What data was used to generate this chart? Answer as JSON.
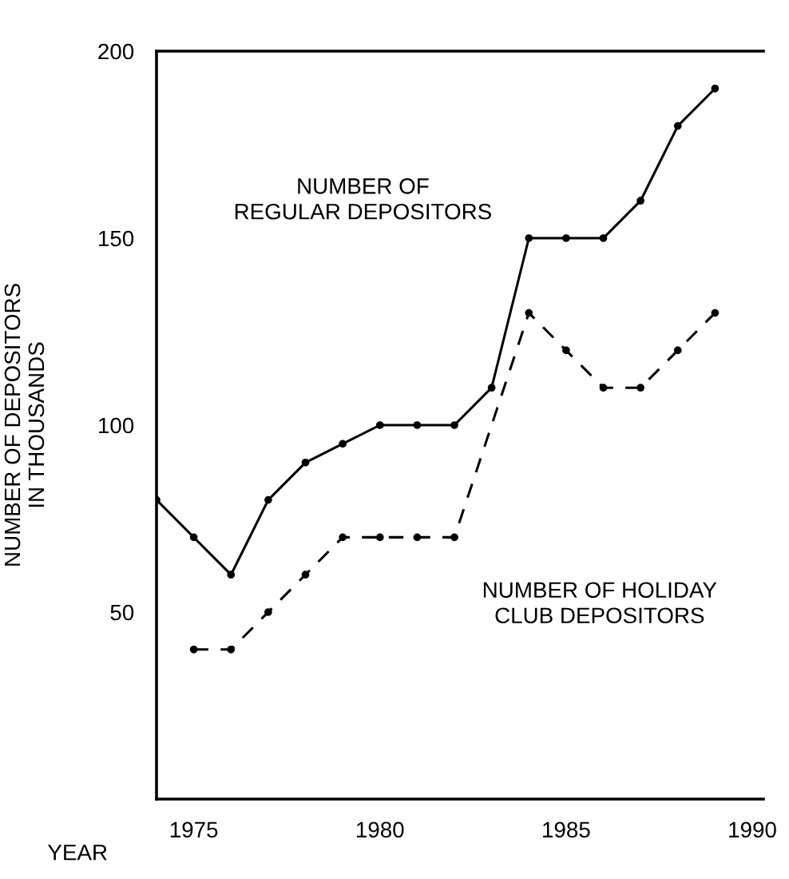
{
  "chart_data": {
    "type": "line",
    "xlabel": "YEAR",
    "ylabel": "NUMBER OF DEPOSITORS\nIN THOUSANDS",
    "xlim": [
      1974.5,
      1990.8
    ],
    "xticks": [
      {
        "value": 1975.5,
        "label": "1975"
      },
      {
        "value": 1980.5,
        "label": "1980"
      },
      {
        "value": 1985.5,
        "label": "1985"
      },
      {
        "value": 1990.5,
        "label": "1990"
      }
    ],
    "ylim": [
      0,
      200
    ],
    "yticks": [
      50,
      100,
      150,
      200
    ],
    "grid": false,
    "legend": false,
    "marker": "circle",
    "series": [
      {
        "name": "NUMBER OF\nREGULAR DEPOSITORS",
        "color": "#000000",
        "line_style": "solid",
        "x": [
          1974.5,
          1975.5,
          1976.5,
          1977.5,
          1978.5,
          1979.5,
          1980.5,
          1981.5,
          1982.5,
          1983.5,
          1984.5,
          1985.5,
          1986.5,
          1987.5,
          1988.5,
          1989.5
        ],
        "values": [
          80,
          70,
          60,
          80,
          90,
          95,
          100,
          100,
          100,
          110,
          150,
          150,
          150,
          160,
          180,
          190
        ]
      },
      {
        "name": "NUMBER OF HOLIDAY\nCLUB DEPOSITORS",
        "color": "#000000",
        "line_style": "dashed",
        "x": [
          1975.5,
          1976.5,
          1977.5,
          1978.5,
          1979.5,
          1980.5,
          1981.5,
          1982.5,
          1984.5,
          1985.5,
          1986.5,
          1987.5,
          1988.5,
          1989.5
        ],
        "values": [
          40,
          40,
          50,
          60,
          70,
          70,
          70,
          70,
          130,
          120,
          110,
          110,
          120,
          130
        ]
      }
    ]
  }
}
